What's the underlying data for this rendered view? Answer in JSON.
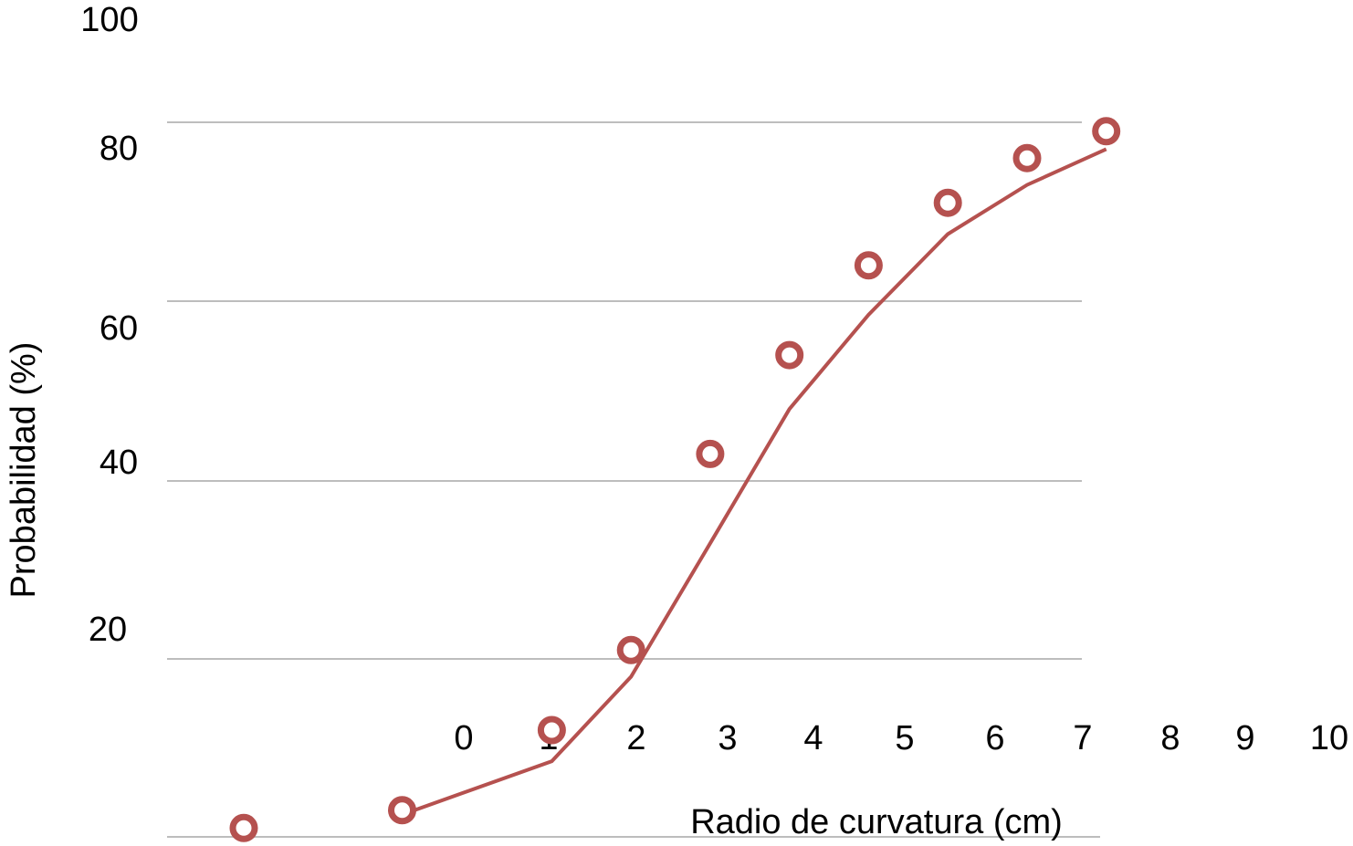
{
  "colors": {
    "series": "#b5514f",
    "grid": "#bdbdbd",
    "text": "#000000"
  },
  "chart_data": {
    "type": "scatter",
    "title": "",
    "xlabel": "Radio de curvatura (cm)",
    "ylabel": "Probabilidad (%)",
    "y_tick_labels": [
      "20",
      "40",
      "60",
      "80",
      "100"
    ],
    "x_tick_labels": [
      "0",
      "1",
      "2",
      "3",
      "4",
      "5",
      "6",
      "7",
      "8",
      "9",
      "10"
    ],
    "grid": true,
    "legend": "none",
    "series": [
      {
        "kind": "points",
        "marker": "open-circle",
        "x": [
          -2.5,
          -0.7,
          1.0,
          1.9,
          2.8,
          3.7,
          4.6,
          5.5,
          6.4,
          7.3
        ],
        "y": [
          1,
          3,
          12,
          21,
          43,
          54,
          64,
          71,
          76,
          79
        ]
      },
      {
        "kind": "line",
        "x": [
          -0.7,
          1.0,
          1.9,
          2.8,
          3.7,
          4.6,
          5.5,
          6.4,
          7.3
        ],
        "y": [
          2.5,
          8.5,
          18,
          33,
          48,
          58.5,
          67.5,
          73,
          77
        ]
      }
    ]
  }
}
